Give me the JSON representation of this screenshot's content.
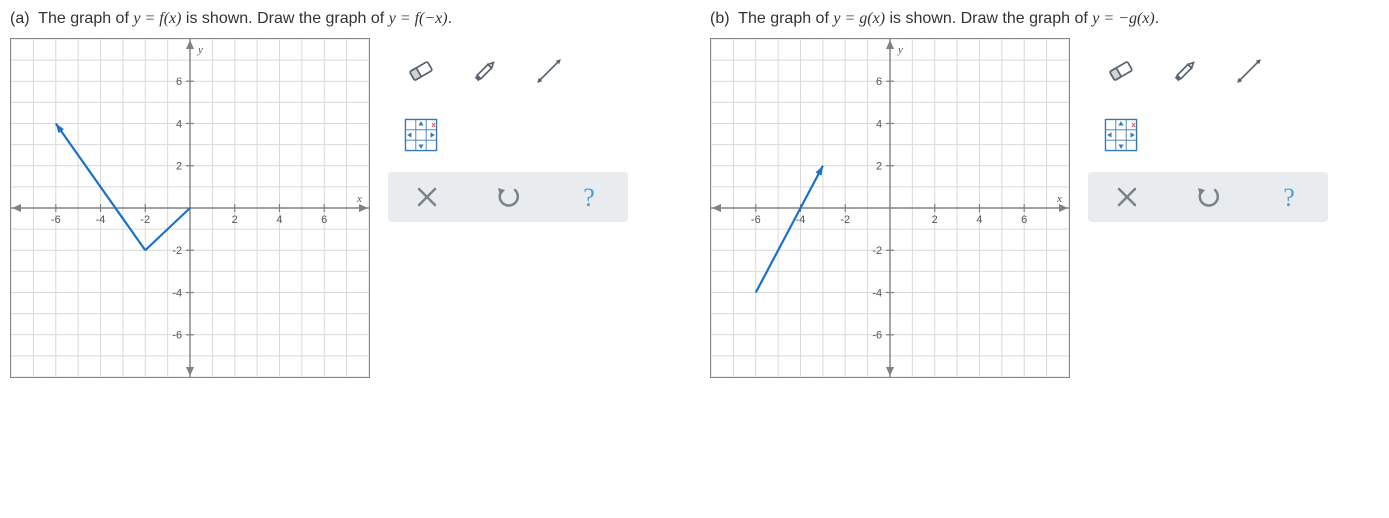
{
  "problems": [
    {
      "id": "a",
      "label": "(a)",
      "prompt_prefix": "The graph of ",
      "prompt_eq1": "y = f(x)",
      "prompt_mid": " is shown. Draw the graph of ",
      "prompt_eq2": "y = f(−x)",
      "prompt_suffix": "."
    },
    {
      "id": "b",
      "label": "(b)",
      "prompt_prefix": "The graph of ",
      "prompt_eq1": "y = g(x)",
      "prompt_mid": " is shown. Draw the graph of ",
      "prompt_eq2": "y = −g(x)",
      "prompt_suffix": "."
    }
  ],
  "graph": {
    "xmin": -8,
    "xmax": 8,
    "ymin": -8,
    "ymax": 8,
    "xticks_labeled": [
      -6,
      -4,
      -2,
      2,
      4,
      6
    ],
    "yticks_labeled": [
      -6,
      -4,
      -2,
      2,
      4,
      6
    ],
    "xlabel": "x",
    "ylabel": "y",
    "grid_color": "#d9d9d9",
    "axis_color": "#808080",
    "curve_color": "#1b70c9",
    "curve_width": 2.2
  },
  "curves": {
    "a": [
      {
        "type": "segment",
        "p1": [
          -6,
          4
        ],
        "p2": [
          -2,
          -2
        ],
        "arrow_start": true
      },
      {
        "type": "segment",
        "p1": [
          -2,
          -2
        ],
        "p2": [
          0,
          0
        ]
      }
    ],
    "b": [
      {
        "type": "segment",
        "p1": [
          -6,
          -4
        ],
        "p2": [
          -3,
          2
        ]
      },
      {
        "type": "segment",
        "p1": [
          -3,
          2
        ],
        "p2": [
          -5,
          0.3
        ],
        "skip": true
      }
    ]
  },
  "curves_b_single": {
    "p1": [
      -6,
      -4
    ],
    "p2": [
      -3,
      2
    ],
    "arrow_end": true
  },
  "toolbar": {
    "tools": [
      "eraser",
      "pencil",
      "line"
    ],
    "grid_tool": "grid-shrink",
    "actions": [
      "close",
      "undo",
      "help"
    ]
  },
  "colors": {
    "toolbar_action_bg": "#e8ecef",
    "icon_stroke": "#5a6470",
    "close_color": "#7a828c",
    "undo_color": "#7a828c",
    "help_color": "#4a9fd8",
    "grid_tool_border": "#3a78b5"
  }
}
